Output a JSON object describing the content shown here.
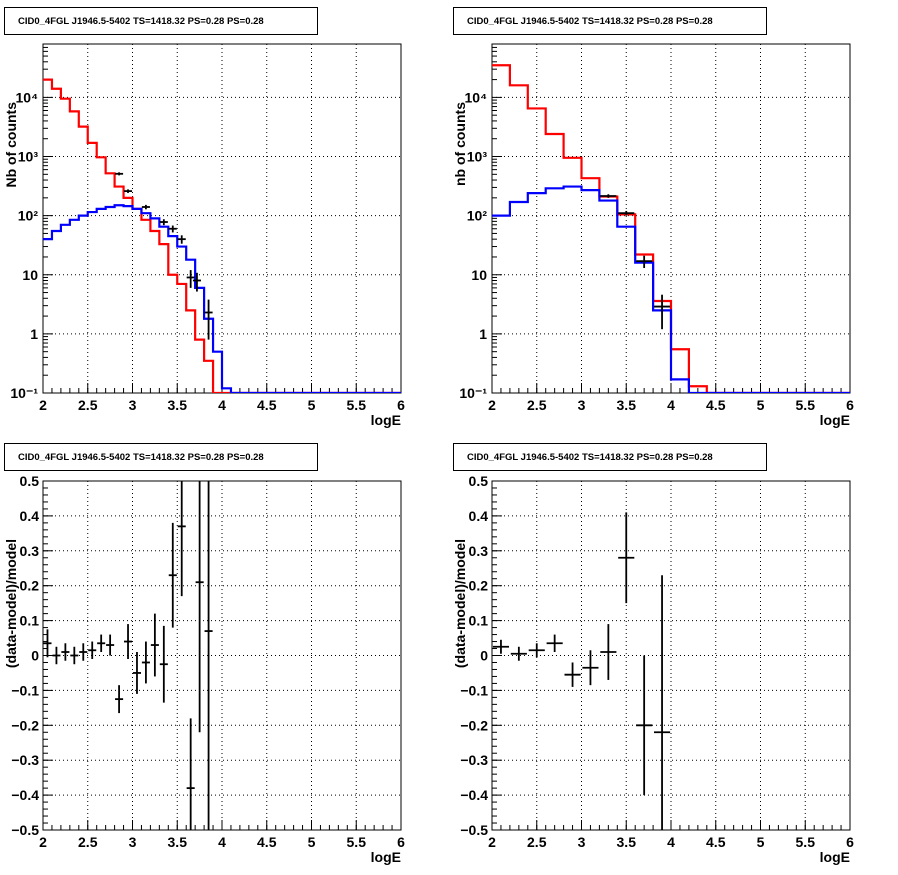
{
  "chart_data": [
    {
      "type": "histogram-step",
      "title": "CID0_4FGL J1946.5-5402 TS=1418.32 PS=0.28 PS=0.28",
      "xlabel": "logE",
      "ylabel": "Nb of counts",
      "xlim": [
        2,
        6
      ],
      "ylim": [
        0.1,
        80000
      ],
      "yscale": "log",
      "grid": true,
      "x_ticks": [
        "2",
        "2.5",
        "3",
        "3.5",
        "4",
        "4.5",
        "5",
        "5.5",
        "6"
      ],
      "y_ticks": [
        "10⁻¹",
        "1",
        "10",
        "10²",
        "10³",
        "10⁴"
      ],
      "bin_width": 0.1,
      "bin_start": 2.0,
      "series": [
        {
          "color": "#ff0000",
          "values": [
            20000,
            14000,
            9500,
            5800,
            3200,
            1700,
            970,
            520,
            310,
            200,
            130,
            85,
            55,
            33,
            10,
            7,
            2.5,
            0.8,
            0.35,
            0.1,
            0.1,
            0.1,
            0.1,
            0.1,
            0.1,
            0.1,
            0.1,
            0.1,
            0.1,
            0.1,
            0.1,
            0.1,
            0.1,
            0.1,
            0.1,
            0.1,
            0.1,
            0.1,
            0.1,
            0.1
          ]
        },
        {
          "color": "#0000ff",
          "values": [
            40,
            55,
            70,
            85,
            100,
            115,
            130,
            140,
            150,
            145,
            130,
            110,
            90,
            65,
            45,
            30,
            18,
            6,
            1.8,
            0.5,
            0.12,
            0.1,
            0.1,
            0.1,
            0.1,
            0.1,
            0.1,
            0.1,
            0.1,
            0.1,
            0.1,
            0.1,
            0.1,
            0.1,
            0.1,
            0.1,
            0.1,
            0.1,
            0.1,
            0.1
          ]
        },
        {
          "color": "#000000",
          "points": [
            {
              "x": 2.85,
              "y": 510,
              "err": 30
            },
            {
              "x": 2.95,
              "y": 260,
              "err": 18
            },
            {
              "x": 3.15,
              "y": 140,
              "err": 12
            },
            {
              "x": 3.35,
              "y": 78,
              "err": 9
            },
            {
              "x": 3.45,
              "y": 60,
              "err": 8
            },
            {
              "x": 3.55,
              "y": 40,
              "err": 6.5
            },
            {
              "x": 3.65,
              "y": 9,
              "err": 3
            },
            {
              "x": 3.72,
              "y": 8,
              "err": 2.8
            },
            {
              "x": 3.85,
              "y": 2.3,
              "err": 1.5
            }
          ]
        }
      ]
    },
    {
      "type": "histogram-step",
      "title": "CID0_4FGL J1946.5-5402 TS=1418.32 PS=0.28 PS=0.28",
      "xlabel": "logE",
      "ylabel": "nb of counts",
      "xlim": [
        2,
        6
      ],
      "ylim": [
        0.1,
        80000
      ],
      "yscale": "log",
      "grid": true,
      "x_ticks": [
        "2",
        "2.5",
        "3",
        "3.5",
        "4",
        "4.5",
        "5",
        "5.5",
        "6"
      ],
      "y_ticks": [
        "10⁻¹",
        "1",
        "10",
        "10²",
        "10³",
        "10⁴"
      ],
      "bin_width": 0.2,
      "bin_start": 2.0,
      "series": [
        {
          "color": "#ff0000",
          "values": [
            35000,
            16000,
            6500,
            2400,
            950,
            430,
            210,
            105,
            22,
            3.6,
            0.55,
            0.13,
            0.1,
            0.1,
            0.1,
            0.1,
            0.1,
            0.1,
            0.1,
            0.1
          ]
        },
        {
          "color": "#0000ff",
          "values": [
            100,
            170,
            240,
            290,
            310,
            270,
            180,
            65,
            16,
            2.5,
            0.17,
            0.1,
            0.1,
            0.1,
            0.1,
            0.1,
            0.1,
            0.1,
            0.1,
            0.1
          ]
        },
        {
          "color": "#000000",
          "points": [
            {
              "x": 3.3,
              "y": 215,
              "err": 15
            },
            {
              "x": 3.5,
              "y": 110,
              "err": 10
            },
            {
              "x": 3.7,
              "y": 17,
              "err": 4
            },
            {
              "x": 3.9,
              "y": 2.9,
              "err": 1.7
            }
          ]
        }
      ]
    },
    {
      "type": "scatter-errorbar",
      "title": "CID0_4FGL J1946.5-5402 TS=1418.32 PS=0.28 PS=0.28",
      "xlabel": "logE",
      "ylabel": "(data-model)/model",
      "xlim": [
        2,
        6
      ],
      "ylim": [
        -0.5,
        0.5
      ],
      "grid": true,
      "x_ticks": [
        "2",
        "2.5",
        "3",
        "3.5",
        "4",
        "4.5",
        "5",
        "5.5",
        "6"
      ],
      "y_ticks": [
        "−0.5",
        "−0.4",
        "−0.3",
        "−0.2",
        "−0.1",
        "0",
        "0.1",
        "0.2",
        "0.3",
        "0.4",
        "0.5"
      ],
      "bin_width": 0.1,
      "series": [
        {
          "color": "#000000",
          "points": [
            {
              "x": 2.05,
              "y": 0.035,
              "err": 0.04
            },
            {
              "x": 2.15,
              "y": 0.0,
              "err": 0.025
            },
            {
              "x": 2.25,
              "y": 0.01,
              "err": 0.025
            },
            {
              "x": 2.35,
              "y": 0.0,
              "err": 0.025
            },
            {
              "x": 2.45,
              "y": 0.01,
              "err": 0.025
            },
            {
              "x": 2.55,
              "y": 0.015,
              "err": 0.025
            },
            {
              "x": 2.65,
              "y": 0.035,
              "err": 0.025
            },
            {
              "x": 2.75,
              "y": 0.03,
              "err": 0.03
            },
            {
              "x": 2.85,
              "y": -0.125,
              "err": 0.04
            },
            {
              "x": 2.95,
              "y": 0.04,
              "err": 0.05
            },
            {
              "x": 3.05,
              "y": -0.05,
              "err": 0.06
            },
            {
              "x": 3.15,
              "y": -0.02,
              "err": 0.06
            },
            {
              "x": 3.25,
              "y": 0.03,
              "err": 0.09
            },
            {
              "x": 3.35,
              "y": -0.025,
              "err": 0.11
            },
            {
              "x": 3.45,
              "y": 0.23,
              "err": 0.15
            },
            {
              "x": 3.55,
              "y": 0.37,
              "err": 0.2
            },
            {
              "x": 3.65,
              "y": -0.38,
              "err": 0.2
            },
            {
              "x": 3.75,
              "y": 0.21,
              "err": 0.43
            },
            {
              "x": 3.85,
              "y": 0.07,
              "err": 0.6
            }
          ]
        }
      ]
    },
    {
      "type": "scatter-errorbar",
      "title": "CID0_4FGL J1946.5-5402 TS=1418.32 PS=0.28 PS=0.28",
      "xlabel": "logE",
      "ylabel": "(data-model)/model",
      "xlim": [
        2,
        6
      ],
      "ylim": [
        -0.5,
        0.5
      ],
      "grid": true,
      "x_ticks": [
        "2",
        "2.5",
        "3",
        "3.5",
        "4",
        "4.5",
        "5",
        "5.5",
        "6"
      ],
      "y_ticks": [
        "−0.5",
        "−0.4",
        "−0.3",
        "−0.2",
        "−0.1",
        "0",
        "0.1",
        "0.2",
        "0.3",
        "0.4",
        "0.5"
      ],
      "bin_width": 0.2,
      "series": [
        {
          "color": "#000000",
          "points": [
            {
              "x": 2.1,
              "y": 0.025,
              "err": 0.02
            },
            {
              "x": 2.3,
              "y": 0.005,
              "err": 0.02
            },
            {
              "x": 2.5,
              "y": 0.015,
              "err": 0.02
            },
            {
              "x": 2.7,
              "y": 0.035,
              "err": 0.025
            },
            {
              "x": 2.9,
              "y": -0.055,
              "err": 0.035
            },
            {
              "x": 3.1,
              "y": -0.035,
              "err": 0.05
            },
            {
              "x": 3.3,
              "y": 0.01,
              "err": 0.08
            },
            {
              "x": 3.5,
              "y": 0.28,
              "err": 0.13
            },
            {
              "x": 3.7,
              "y": -0.2,
              "err": 0.2
            },
            {
              "x": 3.9,
              "y": -0.22,
              "err": 0.45
            }
          ]
        }
      ]
    }
  ]
}
